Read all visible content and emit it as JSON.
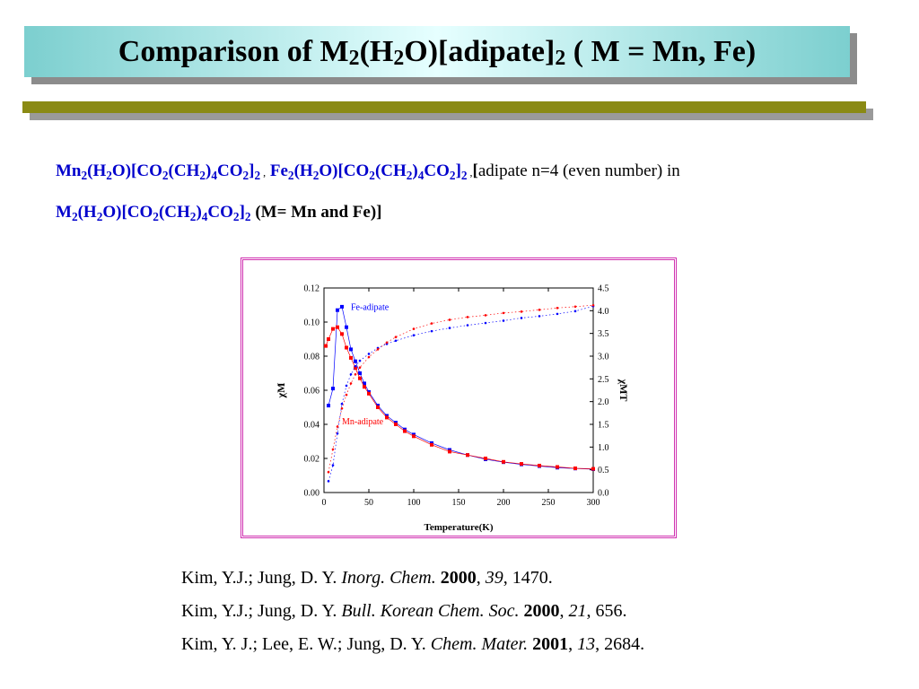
{
  "slide": {
    "title": {
      "prefix": "Comparison of M",
      "sub1": "2",
      "mid1": "(H",
      "sub2": "2",
      "mid2": "O)[adipate]",
      "sub3": "2",
      "suffix": " ( M = Mn, Fe)"
    },
    "formula_line1": {
      "mn_formula": {
        "p1": "Mn",
        "s1": "2",
        "p2": "(H",
        "s2": "2",
        "p3": "O)[CO",
        "s3": "2",
        "p4": "(CH",
        "s4": "2",
        "p5": ")",
        "s5": "4",
        "p6": "CO",
        "s6": "2",
        "p7": "]",
        "s7": "2"
      },
      "sep1": " ,",
      "fe_formula": {
        "p1": "Fe",
        "s1": "2",
        "p2": "(H",
        "s2": "2",
        "p3": "O)[CO",
        "s3": "2",
        "p4": "(CH",
        "s4": "2",
        "p5": ")",
        "s5": "4",
        "p6": "CO",
        "s6": "2",
        "p7": "]",
        "s7": "2"
      },
      "sep2": " ,",
      "bracket": "[",
      "text": "adipate n=4 (even number) in"
    },
    "formula_line2": {
      "m_formula": {
        "p1": "M",
        "s1": "2",
        "p2": "(H",
        "s2": "2",
        "p3": "O)[CO",
        "s3": "2",
        "p4": "(CH",
        "s4": "2",
        "p5": ")",
        "s5": "4",
        "p6": "CO",
        "s6": "2",
        "p7": "]",
        "s7": "2"
      },
      "text": "(M= Mn and Fe)]"
    },
    "colors": {
      "title_bg": "#b8eeee",
      "accent_rule": "#8a8a14",
      "formula_blue": "#0000cc",
      "frame": "#d030b0",
      "fe": "#0000ff",
      "mn": "#ff0000"
    },
    "references": [
      {
        "authors": "Kim, Y.J.; Jung, D. Y. ",
        "journal": "Inorg. Chem.",
        "sep": " ",
        "year": "2000",
        "comma": ", ",
        "volume": "39",
        "pages": ", 1470."
      },
      {
        "authors": "Kim, Y.J.; Jung, D. Y. ",
        "journal": "Bull. Korean Chem. Soc.",
        "sep": " ",
        "year": "2000",
        "comma": ", ",
        "volume": "21",
        "pages": ", 656."
      },
      {
        "authors": "Kim, Y. J.; Lee, E. W.; Jung, D. Y. ",
        "journal": "Chem. Mater.",
        "sep": " ",
        "year": "2001",
        "comma": ", ",
        "volume": "13",
        "pages": ", 2684."
      }
    ]
  },
  "chart_data": {
    "type": "scatter",
    "title": "",
    "xlabel": "Temperature(K)",
    "ylabel_left": "χM",
    "ylabel_right": "χMT",
    "xlim": [
      0,
      300
    ],
    "ylim_left": [
      0,
      0.12
    ],
    "ylim_right": [
      0,
      4.5
    ],
    "xticks": [
      "0",
      "50",
      "100",
      "150",
      "200",
      "250",
      "300"
    ],
    "yticks_left": [
      "0.00",
      "0.02",
      "0.04",
      "0.06",
      "0.08",
      "0.10",
      "0.12"
    ],
    "yticks_right": [
      "0.0",
      "0.5",
      "1.0",
      "1.5",
      "2.0",
      "2.5",
      "3.0",
      "3.5",
      "4.0",
      "4.5"
    ],
    "annotations": [
      {
        "text": "Fe-adipate",
        "color": "#0000ff",
        "x": 30,
        "y": 0.107
      },
      {
        "text": "Mn-adipate",
        "color": "#ff0000",
        "x": 20,
        "y": 0.04
      }
    ],
    "grid": false,
    "series": [
      {
        "name": "Fe-adipate",
        "axis": "left",
        "color": "#0000ff",
        "marker": "square",
        "x": [
          5,
          10,
          15,
          20,
          25,
          30,
          35,
          40,
          45,
          50,
          60,
          70,
          80,
          90,
          100,
          120,
          140,
          160,
          180,
          200,
          220,
          240,
          260,
          280,
          300
        ],
        "values": [
          0.051,
          0.061,
          0.107,
          0.109,
          0.097,
          0.084,
          0.077,
          0.07,
          0.064,
          0.059,
          0.051,
          0.045,
          0.041,
          0.037,
          0.034,
          0.029,
          0.025,
          0.022,
          0.0195,
          0.0178,
          0.0165,
          0.0155,
          0.0146,
          0.0141,
          0.0137
        ]
      },
      {
        "name": "Mn-adipate",
        "axis": "left",
        "color": "#ff0000",
        "marker": "square",
        "x": [
          2,
          5,
          10,
          15,
          20,
          25,
          30,
          35,
          40,
          45,
          50,
          60,
          70,
          80,
          90,
          100,
          120,
          140,
          160,
          180,
          200,
          220,
          240,
          260,
          280,
          300
        ],
        "values": [
          0.086,
          0.09,
          0.096,
          0.097,
          0.093,
          0.085,
          0.079,
          0.073,
          0.067,
          0.062,
          0.058,
          0.05,
          0.044,
          0.04,
          0.036,
          0.033,
          0.028,
          0.024,
          0.022,
          0.02,
          0.018,
          0.0168,
          0.0158,
          0.015,
          0.0142,
          0.0139
        ]
      },
      {
        "name": "Fe-adipate",
        "axis": "right",
        "color": "#0000ff",
        "marker": "dot",
        "x": [
          5,
          10,
          15,
          20,
          25,
          30,
          35,
          40,
          50,
          60,
          70,
          80,
          100,
          120,
          140,
          160,
          180,
          200,
          220,
          240,
          260,
          280,
          300
        ],
        "values": [
          0.25,
          0.6,
          1.3,
          1.95,
          2.35,
          2.6,
          2.78,
          2.9,
          3.05,
          3.18,
          3.27,
          3.34,
          3.46,
          3.55,
          3.62,
          3.68,
          3.73,
          3.78,
          3.84,
          3.88,
          3.93,
          3.99,
          4.1
        ]
      },
      {
        "name": "Mn-adipate",
        "axis": "right",
        "color": "#ff0000",
        "marker": "dot",
        "x": [
          5,
          10,
          15,
          20,
          25,
          30,
          35,
          40,
          50,
          60,
          70,
          80,
          100,
          120,
          140,
          160,
          180,
          200,
          220,
          240,
          260,
          280,
          300
        ],
        "values": [
          0.45,
          0.95,
          1.45,
          1.85,
          2.15,
          2.4,
          2.6,
          2.75,
          2.98,
          3.15,
          3.3,
          3.42,
          3.6,
          3.72,
          3.8,
          3.86,
          3.9,
          3.95,
          3.98,
          4.02,
          4.06,
          4.09,
          4.12
        ]
      }
    ]
  }
}
